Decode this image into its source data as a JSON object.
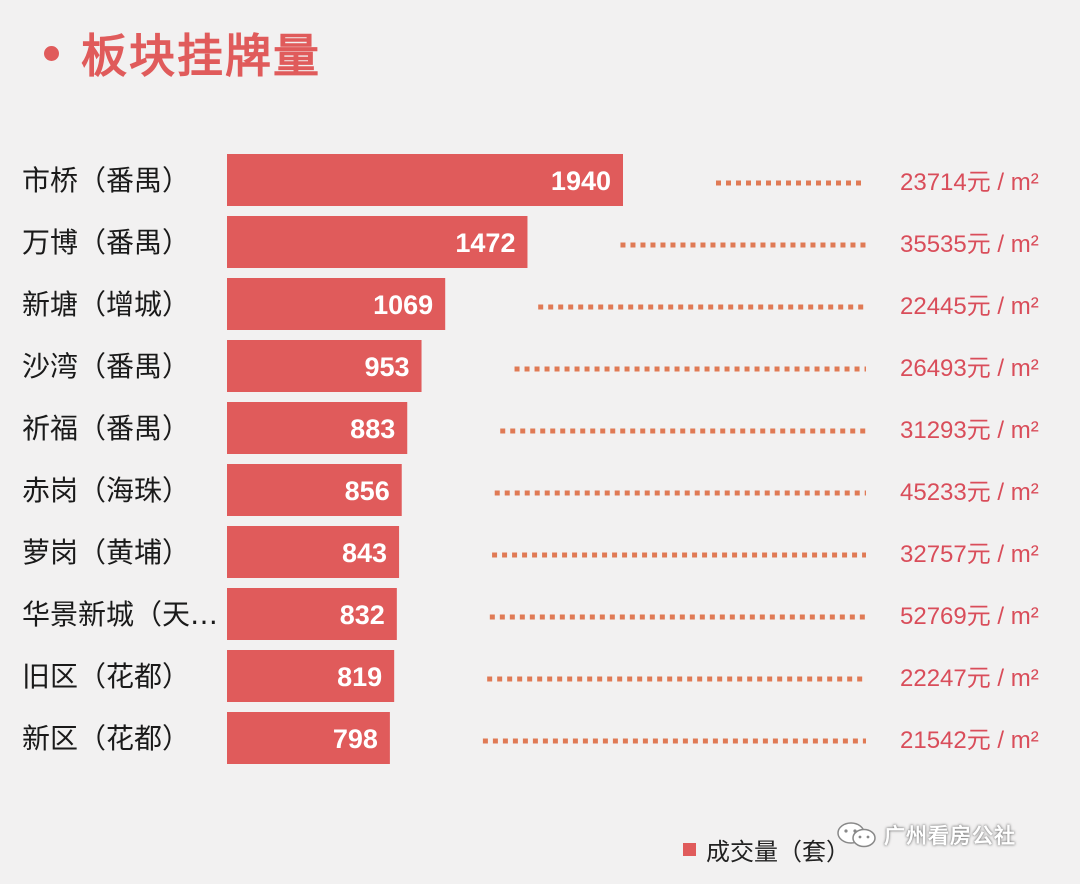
{
  "title": "板块挂牌量",
  "legend": {
    "label": "成交量（套）"
  },
  "watermark": "广州看房公社",
  "colors": {
    "bar": "#e05b5b",
    "dots": "#e07a55",
    "price_text": "#d94d5a",
    "category_text": "#1a1a1a",
    "title": "#e05b5b"
  },
  "chart_data": {
    "type": "bar",
    "orientation": "horizontal",
    "categories": [
      "市桥（番禺）",
      "万博（番禺）",
      "新塘（增城）",
      "沙湾（番禺）",
      "祈福（番禺）",
      "赤岗（海珠）",
      "萝岗（黄埔）",
      "华景新城（天…",
      "旧区（花都）",
      "新区（花都）"
    ],
    "series": [
      {
        "name": "成交量（套）",
        "values": [
          1940,
          1472,
          1069,
          953,
          883,
          856,
          843,
          832,
          819,
          798
        ]
      }
    ],
    "annotations": [
      "23714元 / m²",
      "35535元 / m²",
      "22445元 / m²",
      "26493元 / m²",
      "31293元 / m²",
      "45233元 / m²",
      "32757元 / m²",
      "52769元 / m²",
      "22247元 / m²",
      "21542元 / m²"
    ],
    "legend_position": "bottom-right",
    "grid": false
  }
}
